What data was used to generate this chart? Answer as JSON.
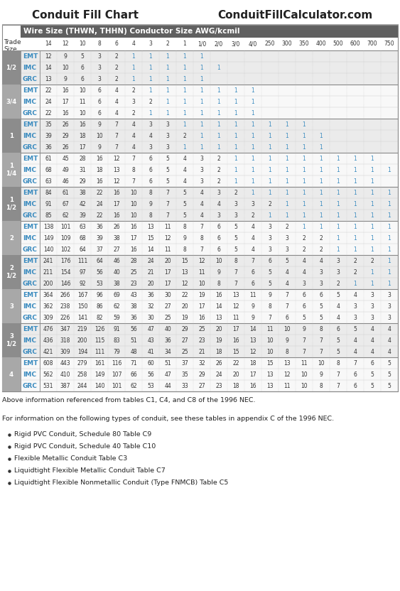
{
  "title_left": "Conduit Fill Chart",
  "title_right": "ConduitFillCalculator.com",
  "header_label": "Wire Size (THWN, THHN) Conductor Size AWG/kcmil",
  "col_headers": [
    "14",
    "12",
    "10",
    "8",
    "6",
    "4",
    "3",
    "2",
    "1",
    "1/0",
    "2/0",
    "3/0",
    "4/0",
    "250",
    "300",
    "350",
    "400",
    "500",
    "600",
    "700",
    "750"
  ],
  "rows": [
    {
      "trade": "1/2",
      "type": "EMT",
      "vals": [
        "12",
        "9",
        "5",
        "3",
        "2",
        "1",
        "1",
        "1",
        "1",
        "1",
        "",
        "",
        "",
        "",
        "",
        "",
        "",
        "",
        "",
        "",
        ""
      ]
    },
    {
      "trade": "1/2",
      "type": "IMC",
      "vals": [
        "14",
        "10",
        "6",
        "3",
        "2",
        "1",
        "1",
        "1",
        "1",
        "1",
        "1",
        "",
        "",
        "",
        "",
        "",
        "",
        "",
        "",
        "",
        ""
      ]
    },
    {
      "trade": "1/2",
      "type": "GRC",
      "vals": [
        "13",
        "9",
        "6",
        "3",
        "2",
        "1",
        "1",
        "1",
        "1",
        "1",
        "",
        "",
        "",
        "",
        "",
        "",
        "",
        "",
        "",
        "",
        ""
      ]
    },
    {
      "trade": "3/4",
      "type": "EMT",
      "vals": [
        "22",
        "16",
        "10",
        "6",
        "4",
        "2",
        "1",
        "1",
        "1",
        "1",
        "1",
        "1",
        "1",
        "",
        "",
        "",
        "",
        "",
        "",
        "",
        ""
      ]
    },
    {
      "trade": "3/4",
      "type": "IMC",
      "vals": [
        "24",
        "17",
        "11",
        "6",
        "4",
        "3",
        "2",
        "1",
        "1",
        "1",
        "1",
        "1",
        "1",
        "",
        "",
        "",
        "",
        "",
        "",
        "",
        ""
      ]
    },
    {
      "trade": "3/4",
      "type": "GRC",
      "vals": [
        "22",
        "16",
        "10",
        "6",
        "4",
        "2",
        "1",
        "1",
        "1",
        "1",
        "1",
        "1",
        "1",
        "",
        "",
        "",
        "",
        "",
        "",
        "",
        ""
      ]
    },
    {
      "trade": "1",
      "type": "EMT",
      "vals": [
        "35",
        "26",
        "16",
        "9",
        "7",
        "4",
        "3",
        "3",
        "1",
        "1",
        "1",
        "1",
        "1",
        "1",
        "1",
        "1",
        "",
        "",
        "",
        "",
        ""
      ]
    },
    {
      "trade": "1",
      "type": "IMC",
      "vals": [
        "39",
        "29",
        "18",
        "10",
        "7",
        "4",
        "4",
        "3",
        "2",
        "1",
        "1",
        "1",
        "1",
        "1",
        "1",
        "1",
        "1",
        "",
        "",
        "",
        ""
      ]
    },
    {
      "trade": "1",
      "type": "GRC",
      "vals": [
        "36",
        "26",
        "17",
        "9",
        "7",
        "4",
        "3",
        "3",
        "1",
        "1",
        "1",
        "1",
        "1",
        "1",
        "1",
        "1",
        "1",
        "",
        "",
        "",
        ""
      ]
    },
    {
      "trade": "1\n1/4",
      "type": "EMT",
      "vals": [
        "61",
        "45",
        "28",
        "16",
        "12",
        "7",
        "6",
        "5",
        "4",
        "3",
        "2",
        "1",
        "1",
        "1",
        "1",
        "1",
        "1",
        "1",
        "1",
        "1",
        ""
      ]
    },
    {
      "trade": "1\n1/4",
      "type": "IMC",
      "vals": [
        "68",
        "49",
        "31",
        "18",
        "13",
        "8",
        "6",
        "5",
        "4",
        "3",
        "2",
        "1",
        "1",
        "1",
        "1",
        "1",
        "1",
        "1",
        "1",
        "1",
        "1"
      ]
    },
    {
      "trade": "1\n1/4",
      "type": "GRC",
      "vals": [
        "63",
        "46",
        "29",
        "16",
        "12",
        "7",
        "6",
        "5",
        "4",
        "3",
        "2",
        "1",
        "1",
        "1",
        "1",
        "1",
        "1",
        "1",
        "1",
        "1",
        ""
      ]
    },
    {
      "trade": "1\n1/2",
      "type": "EMT",
      "vals": [
        "84",
        "61",
        "38",
        "22",
        "16",
        "10",
        "8",
        "7",
        "5",
        "4",
        "3",
        "2",
        "1",
        "1",
        "1",
        "1",
        "1",
        "1",
        "1",
        "1",
        "1"
      ]
    },
    {
      "trade": "1\n1/2",
      "type": "IMC",
      "vals": [
        "91",
        "67",
        "42",
        "24",
        "17",
        "10",
        "9",
        "7",
        "5",
        "4",
        "4",
        "3",
        "3",
        "2",
        "1",
        "1",
        "1",
        "1",
        "1",
        "1",
        "1"
      ]
    },
    {
      "trade": "1\n1/2",
      "type": "GRC",
      "vals": [
        "85",
        "62",
        "39",
        "22",
        "16",
        "10",
        "8",
        "7",
        "5",
        "4",
        "3",
        "3",
        "2",
        "1",
        "1",
        "1",
        "1",
        "1",
        "1",
        "1",
        "1"
      ]
    },
    {
      "trade": "2",
      "type": "EMT",
      "vals": [
        "138",
        "101",
        "63",
        "36",
        "26",
        "16",
        "13",
        "11",
        "8",
        "7",
        "6",
        "5",
        "4",
        "3",
        "2",
        "1",
        "1",
        "1",
        "1",
        "1",
        "1"
      ]
    },
    {
      "trade": "2",
      "type": "IMC",
      "vals": [
        "149",
        "109",
        "68",
        "39",
        "38",
        "17",
        "15",
        "12",
        "9",
        "8",
        "6",
        "5",
        "4",
        "3",
        "3",
        "2",
        "2",
        "1",
        "1",
        "1",
        "1"
      ]
    },
    {
      "trade": "2",
      "type": "GRC",
      "vals": [
        "140",
        "102",
        "64",
        "37",
        "27",
        "16",
        "14",
        "11",
        "8",
        "7",
        "6",
        "5",
        "4",
        "3",
        "3",
        "2",
        "2",
        "1",
        "1",
        "1",
        "1"
      ]
    },
    {
      "trade": "2\n1/2",
      "type": "EMT",
      "vals": [
        "241",
        "176",
        "111",
        "64",
        "46",
        "28",
        "24",
        "20",
        "15",
        "12",
        "10",
        "8",
        "7",
        "6",
        "5",
        "4",
        "4",
        "3",
        "2",
        "2",
        "1"
      ]
    },
    {
      "trade": "2\n1/2",
      "type": "IMC",
      "vals": [
        "211",
        "154",
        "97",
        "56",
        "40",
        "25",
        "21",
        "17",
        "13",
        "11",
        "9",
        "7",
        "6",
        "5",
        "4",
        "4",
        "3",
        "3",
        "2",
        "1",
        "1"
      ]
    },
    {
      "trade": "2\n1/2",
      "type": "GRC",
      "vals": [
        "200",
        "146",
        "92",
        "53",
        "38",
        "23",
        "20",
        "17",
        "12",
        "10",
        "8",
        "7",
        "6",
        "5",
        "4",
        "3",
        "3",
        "2",
        "1",
        "1",
        "1"
      ]
    },
    {
      "trade": "3",
      "type": "EMT",
      "vals": [
        "364",
        "266",
        "167",
        "96",
        "69",
        "43",
        "36",
        "30",
        "22",
        "19",
        "16",
        "13",
        "11",
        "9",
        "7",
        "6",
        "6",
        "5",
        "4",
        "3",
        "3"
      ]
    },
    {
      "trade": "3",
      "type": "IMC",
      "vals": [
        "362",
        "238",
        "150",
        "86",
        "62",
        "38",
        "32",
        "27",
        "20",
        "17",
        "14",
        "12",
        "9",
        "8",
        "7",
        "6",
        "5",
        "4",
        "3",
        "3",
        "3"
      ]
    },
    {
      "trade": "3",
      "type": "GRC",
      "vals": [
        "309",
        "226",
        "141",
        "82",
        "59",
        "36",
        "30",
        "25",
        "19",
        "16",
        "13",
        "11",
        "9",
        "7",
        "6",
        "5",
        "5",
        "4",
        "3",
        "3",
        "3"
      ]
    },
    {
      "trade": "3\n1/2",
      "type": "EMT",
      "vals": [
        "476",
        "347",
        "219",
        "126",
        "91",
        "56",
        "47",
        "40",
        "29",
        "25",
        "20",
        "17",
        "14",
        "11",
        "10",
        "9",
        "8",
        "6",
        "5",
        "4",
        "4"
      ]
    },
    {
      "trade": "3\n1/2",
      "type": "IMC",
      "vals": [
        "436",
        "318",
        "200",
        "115",
        "83",
        "51",
        "43",
        "36",
        "27",
        "23",
        "19",
        "16",
        "13",
        "10",
        "9",
        "7",
        "7",
        "5",
        "4",
        "4",
        "4"
      ]
    },
    {
      "trade": "3\n1/2",
      "type": "GRC",
      "vals": [
        "421",
        "309",
        "194",
        "111",
        "79",
        "48",
        "41",
        "34",
        "25",
        "21",
        "18",
        "15",
        "12",
        "10",
        "8",
        "7",
        "7",
        "5",
        "4",
        "4",
        "4"
      ]
    },
    {
      "trade": "4",
      "type": "EMT",
      "vals": [
        "608",
        "443",
        "279",
        "161",
        "116",
        "71",
        "60",
        "51",
        "37",
        "32",
        "26",
        "22",
        "18",
        "15",
        "13",
        "11",
        "10",
        "8",
        "7",
        "6",
        "5"
      ]
    },
    {
      "trade": "4",
      "type": "IMC",
      "vals": [
        "562",
        "410",
        "258",
        "149",
        "107",
        "66",
        "56",
        "47",
        "35",
        "29",
        "24",
        "20",
        "17",
        "13",
        "12",
        "10",
        "9",
        "7",
        "6",
        "5",
        "5"
      ]
    },
    {
      "trade": "4",
      "type": "GRC",
      "vals": [
        "531",
        "387",
        "244",
        "140",
        "101",
        "62",
        "53",
        "44",
        "33",
        "27",
        "23",
        "18",
        "16",
        "13",
        "11",
        "10",
        "8",
        "7",
        "6",
        "5",
        "5"
      ]
    }
  ],
  "trade_sizes": [
    "1/2",
    "3/4",
    "1",
    "1\n1/4",
    "1\n1/2",
    "2",
    "2\n1/2",
    "3",
    "3\n1/2",
    "4"
  ],
  "footnote": "Above information referenced from tables C1, C4, and C8 of the 1996 NEC.",
  "note_text": "For information on the following types of conduit, see these tables in appendix C of the 1996 NEC.",
  "bullets": [
    "Rigid PVC Conduit, Schedule 80 Table C9",
    "Rigid PVC Conduit, Schedule 40 Table C10",
    "Flexible Metallic Conduit Table C3",
    "Liquidtight Flexible Metallic Conduit Table C7",
    "Liquidtight Flexible Nonmetallic Conduit (Type FNMCB) Table C5"
  ],
  "bg_header_dark": "#606060",
  "bg_row_light": "#ebebeb",
  "bg_row_white": "#f8f8f8",
  "bg_trade_dark": "#8a8a8a",
  "bg_trade_light": "#aaaaaa",
  "color_blue": "#3a8bbf",
  "color_dark": "#333333",
  "color_title": "#222222"
}
